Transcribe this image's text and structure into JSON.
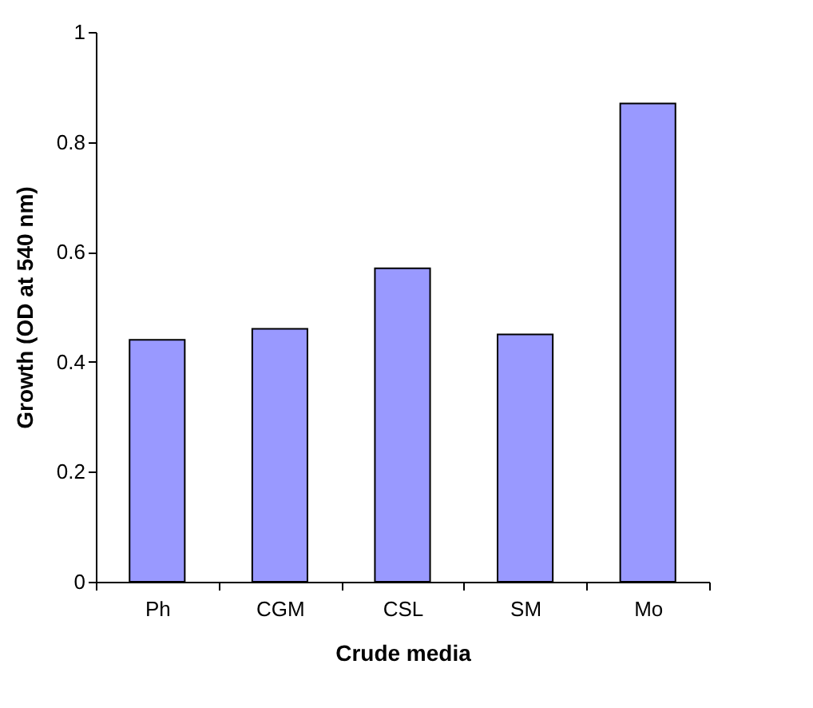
{
  "chart_data": {
    "type": "bar",
    "xlabel": "Crude media",
    "ylabel": "Growth (OD at 540 nm)",
    "categories": [
      "Ph",
      "CGM",
      "CSL",
      "SM",
      "Mo"
    ],
    "values": [
      0.44,
      0.46,
      0.57,
      0.45,
      0.87
    ],
    "color": "#9999ff",
    "ylim": [
      0,
      1
    ],
    "yticks": [
      0,
      0.2,
      0.4,
      0.6,
      0.8,
      1
    ],
    "grid": false
  }
}
